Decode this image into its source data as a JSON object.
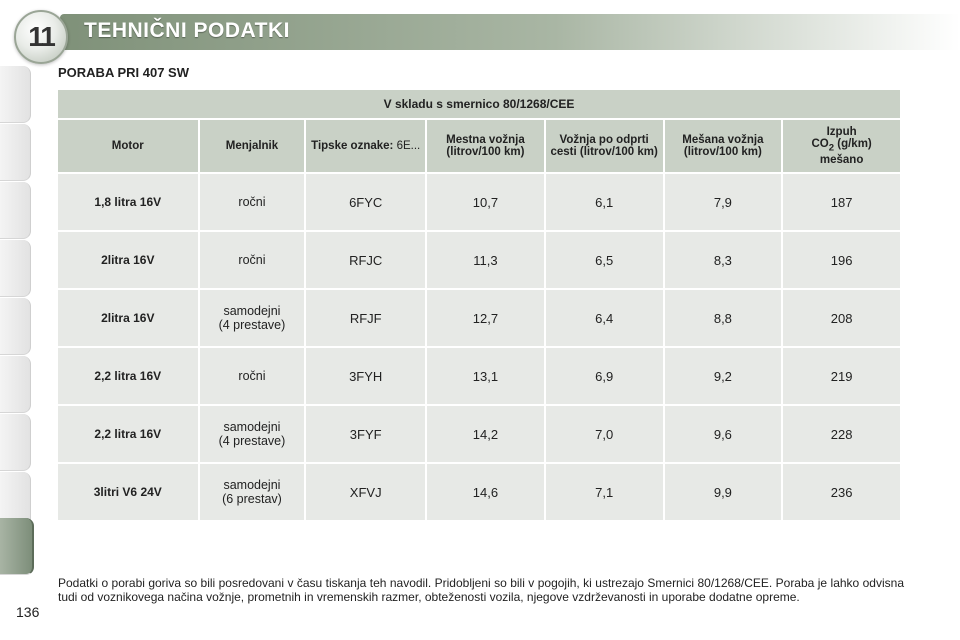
{
  "chapter": {
    "number": "11",
    "title": "TEHNIČNI PODATKI"
  },
  "section_title": "PORABA PRI 407 SW",
  "table": {
    "caption": "V skladu s smernico 80/1268/CEE",
    "headers": {
      "motor": "Motor",
      "gearbox": "Menjalnik",
      "type_label": "Tipske oznake:",
      "type_value": "6E...",
      "urban": "Mestna vožnja (litrov/100 km)",
      "extra_urban": "Vožnja po odprti cesti (litrov/100 km)",
      "combined": "Mešana vožnja (litrov/100 km)",
      "co2_line1": "Izpuh",
      "co2_prefix": "CO",
      "co2_sub": "2",
      "co2_suffix": " (g/km)",
      "co2_line3": "mešano"
    },
    "rows": [
      {
        "motor": "1,8 litra 16V",
        "gearbox_1": "ročni",
        "gearbox_2": "",
        "code": "6FYC",
        "urban": "10,7",
        "extra_urban": "6,1",
        "combined": "7,9",
        "co2": "187"
      },
      {
        "motor": "2litra 16V",
        "gearbox_1": "ročni",
        "gearbox_2": "",
        "code": "RFJC",
        "urban": "11,3",
        "extra_urban": "6,5",
        "combined": "8,3",
        "co2": "196"
      },
      {
        "motor": "2litra 16V",
        "gearbox_1": "samodejni",
        "gearbox_2": "(4 prestave)",
        "code": "RFJF",
        "urban": "12,7",
        "extra_urban": "6,4",
        "combined": "8,8",
        "co2": "208"
      },
      {
        "motor": "2,2 litra 16V",
        "gearbox_1": "ročni",
        "gearbox_2": "",
        "code": "3FYH",
        "urban": "13,1",
        "extra_urban": "6,9",
        "combined": "9,2",
        "co2": "219"
      },
      {
        "motor": "2,2 litra 16V",
        "gearbox_1": "samodejni",
        "gearbox_2": "(4 prestave)",
        "code": "3FYF",
        "urban": "14,2",
        "extra_urban": "7,0",
        "combined": "9,6",
        "co2": "228"
      },
      {
        "motor": "3litri V6 24V",
        "gearbox_1": "samodejni",
        "gearbox_2": "(6 prestav)",
        "code": "XFVJ",
        "urban": "14,6",
        "extra_urban": "7,1",
        "combined": "9,9",
        "co2": "236"
      }
    ]
  },
  "footnote": "Podatki o porabi goriva so bili posredovani v času tiskanja teh navodil. Pridobljeni so bili v pogojih, ki ustrezajo Smernici 80/1268/CEE. Poraba je lahko odvisna tudi od voznikovega načina vožnje, prometnih in vremenskih razmer, obteženosti vozila, njegove vzdrževanosti in uporabe dodatne opreme.",
  "page_number": "136",
  "colors": {
    "header_green": "#7f9179",
    "table_header_bg": "#c9d1c6",
    "table_cell_bg": "#e7e9e6",
    "active_tab": "#7d8e7a"
  }
}
